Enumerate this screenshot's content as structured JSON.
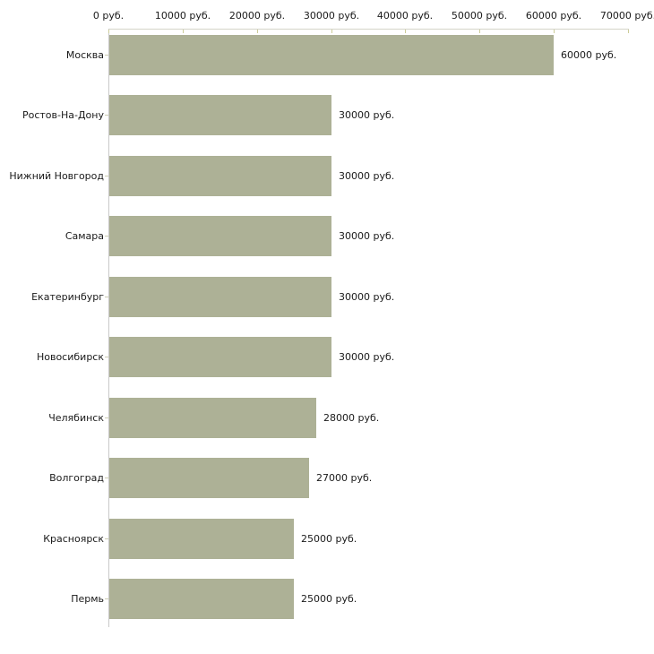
{
  "chart_data": {
    "type": "bar",
    "orientation": "horizontal",
    "title": "",
    "xlabel": "",
    "ylabel": "",
    "categories": [
      "Москва",
      "Ростов-На-Дону",
      "Нижний Новгород",
      "Самара",
      "Екатеринбург",
      "Новосибирск",
      "Челябинск",
      "Волгоград",
      "Красноярск",
      "Пермь"
    ],
    "values": [
      60000,
      30000,
      30000,
      30000,
      30000,
      30000,
      28000,
      27000,
      25000,
      25000
    ],
    "value_labels": [
      "60000 руб.",
      "30000 руб.",
      "30000 руб.",
      "30000 руб.",
      "30000 руб.",
      "30000 руб.",
      "28000 руб.",
      "27000 руб.",
      "25000 руб.",
      "25000 руб."
    ],
    "x_axis": {
      "position": "top",
      "min": 0,
      "max": 70000,
      "ticks": [
        0,
        10000,
        20000,
        30000,
        40000,
        50000,
        60000,
        70000
      ],
      "tick_labels": [
        "0 руб.",
        "10000 руб.",
        "20000 руб.",
        "30000 руб.",
        "40000 руб.",
        "50000 руб.",
        "60000 руб.",
        "70000 руб."
      ]
    },
    "legend": null,
    "grid": false,
    "colors": {
      "bar_fill": "#adb196",
      "x_axis_line": "#d4d4c8",
      "y_axis_line": "#c9c9c9",
      "x_tick_mark": "#cccc99",
      "category_tick_mark": "#ccccb3",
      "text": "#1a1a1a",
      "background": "#ffffff"
    }
  }
}
